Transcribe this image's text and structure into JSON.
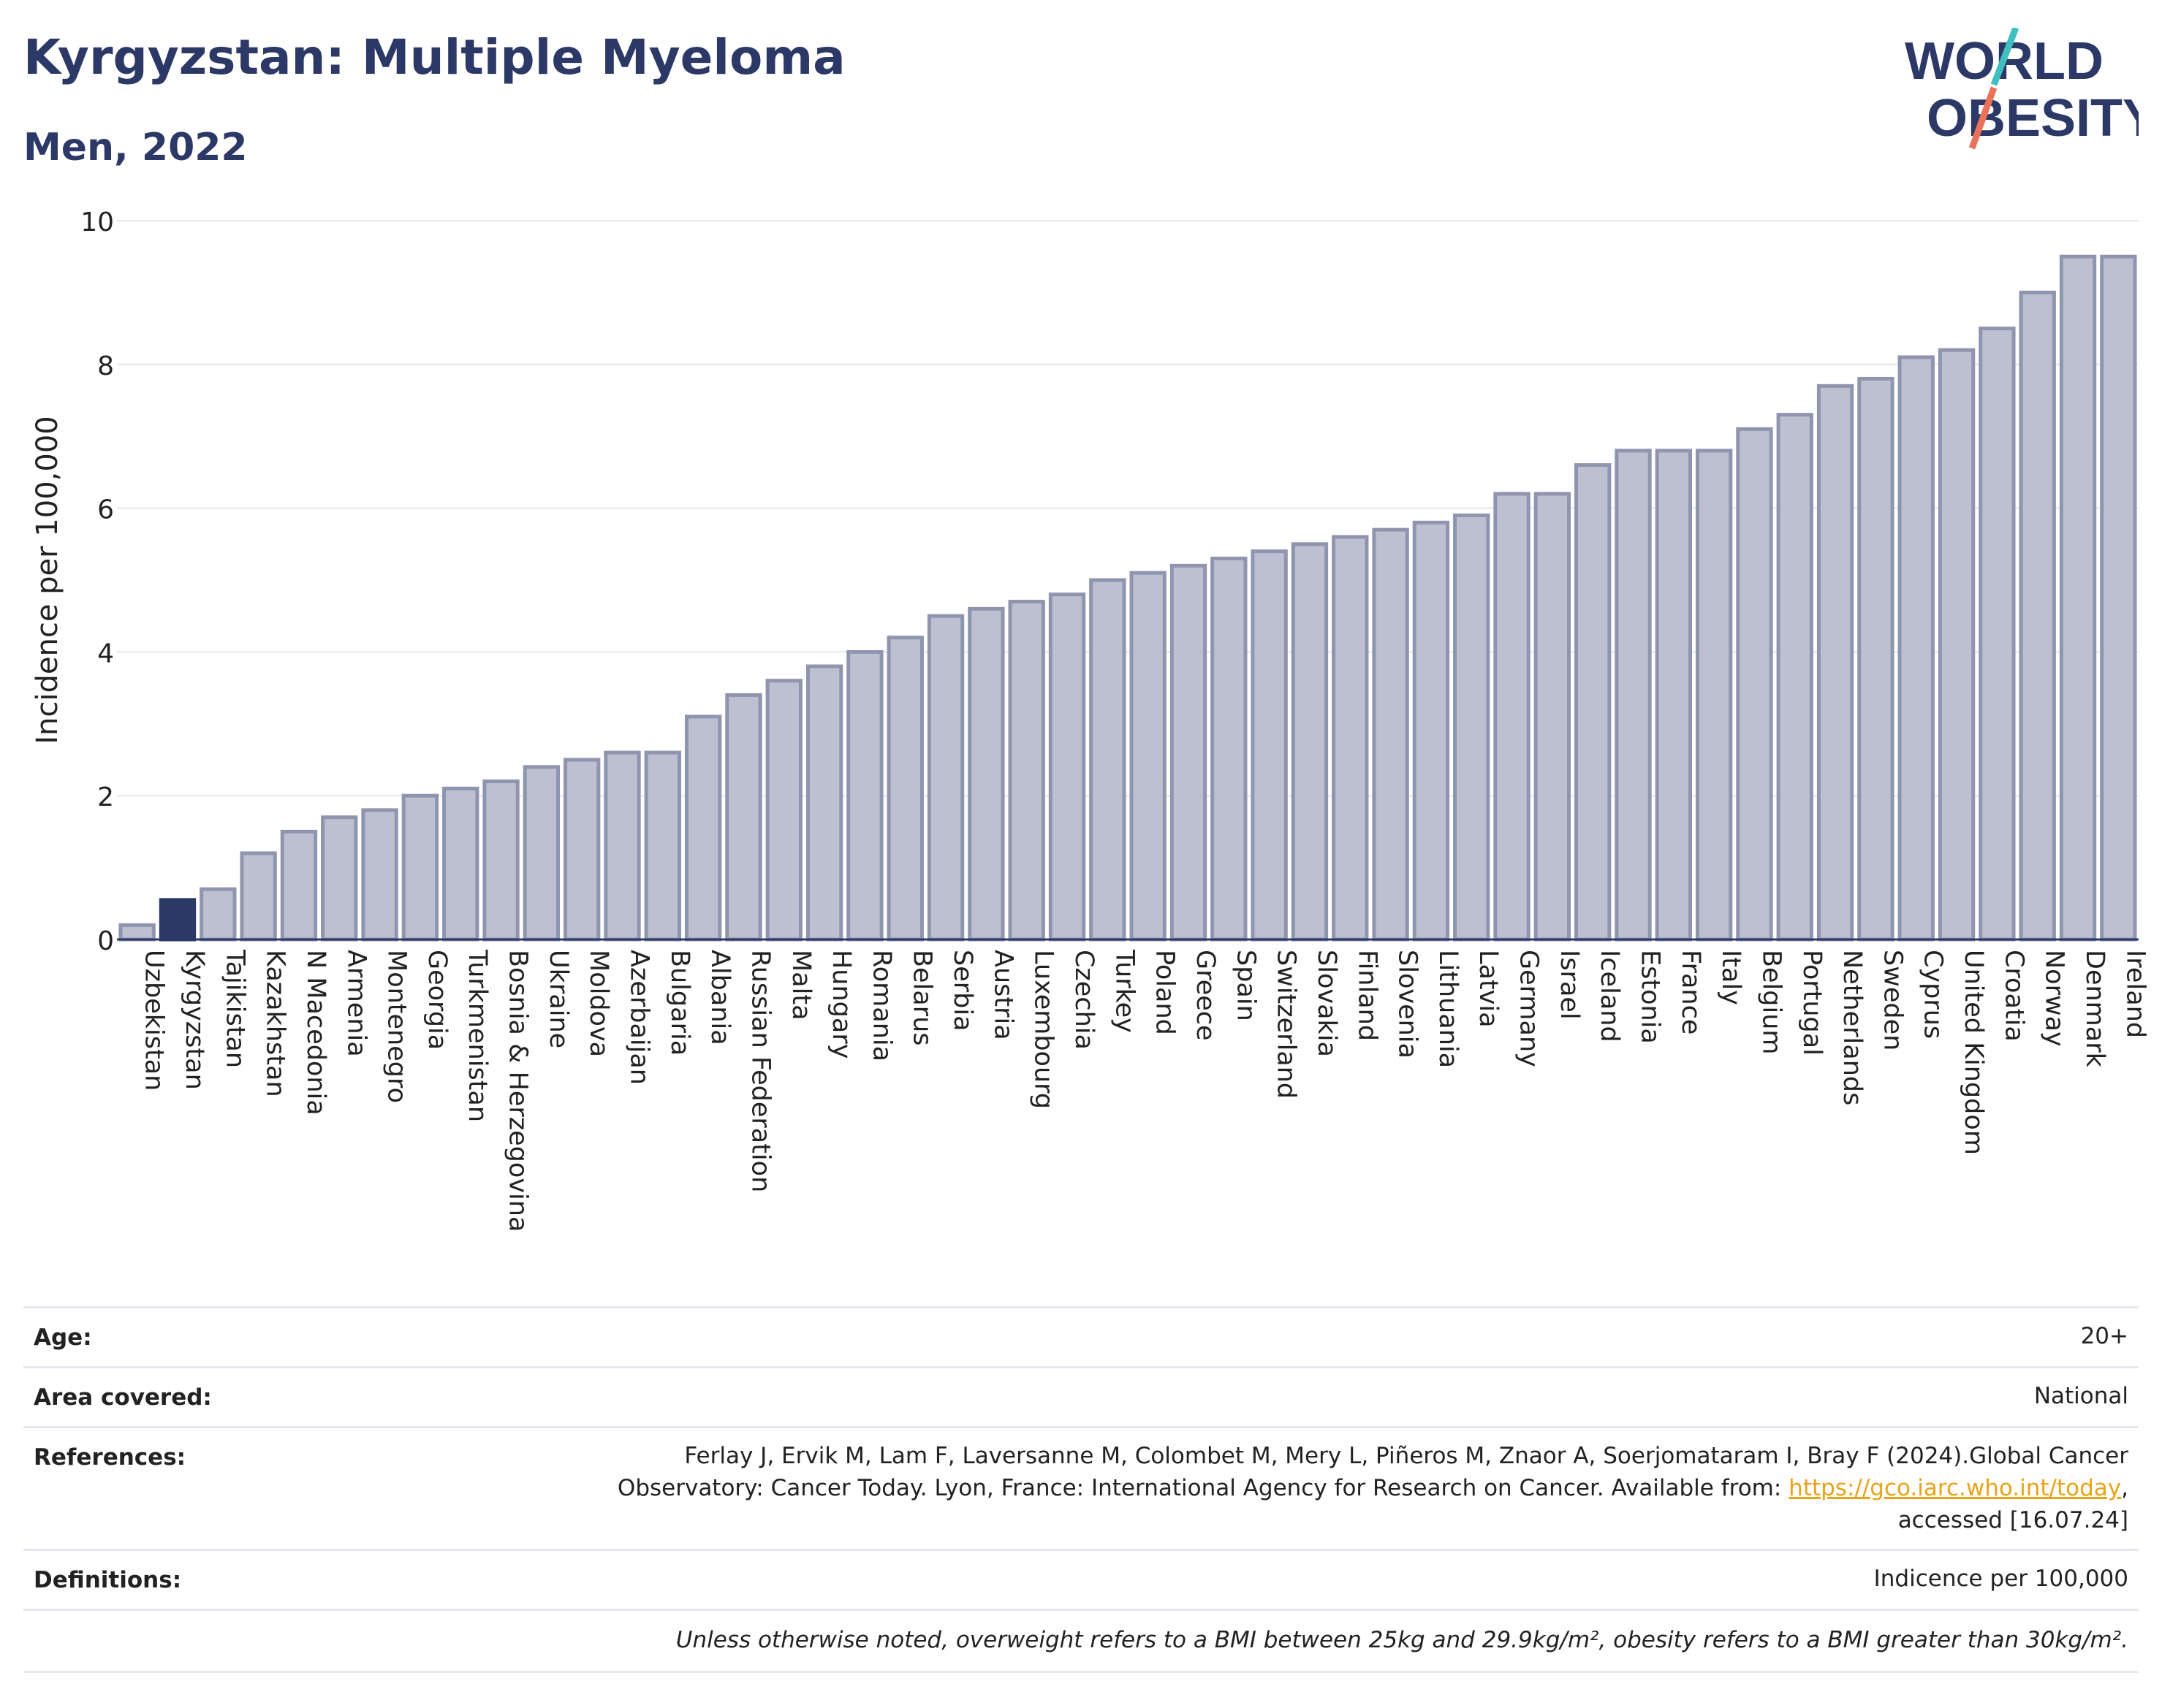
{
  "header": {
    "title": "Kyrgyzstan: Multiple Myeloma",
    "subtitle": "Men, 2022",
    "logo_line1": "WORLD",
    "logo_line2": "OBESITY"
  },
  "colors": {
    "title": "#2c3866",
    "bar": "#bcc0d0",
    "bar_stroke": "#8f95ae",
    "highlight": "#2c3866",
    "logo_teal": "#3fbfbf",
    "logo_coral": "#e8735a"
  },
  "chart_data": {
    "type": "bar",
    "ylabel": "Incidence per 100,000",
    "ylim": [
      0,
      10
    ],
    "yticks": [
      0,
      2,
      4,
      6,
      8,
      10
    ],
    "grid": true,
    "highlight": "Kyrgyzstan",
    "categories": [
      "Uzbekistan",
      "Kyrgyzstan",
      "Tajikistan",
      "Kazakhstan",
      "N Macedonia",
      "Armenia",
      "Montenegro",
      "Georgia",
      "Turkmenistan",
      "Bosnia & Herzegovina",
      "Ukraine",
      "Moldova",
      "Azerbaijan",
      "Bulgaria",
      "Albania",
      "Russian Federation",
      "Malta",
      "Hungary",
      "Romania",
      "Belarus",
      "Serbia",
      "Austria",
      "Luxembourg",
      "Czechia",
      "Turkey",
      "Poland",
      "Greece",
      "Spain",
      "Switzerland",
      "Slovakia",
      "Finland",
      "Slovenia",
      "Lithuania",
      "Latvia",
      "Germany",
      "Israel",
      "Iceland",
      "Estonia",
      "France",
      "Italy",
      "Belgium",
      "Portugal",
      "Netherlands",
      "Sweden",
      "Cyprus",
      "United Kingdom",
      "Croatia",
      "Norway",
      "Denmark",
      "Ireland"
    ],
    "values": [
      0.2,
      0.55,
      0.7,
      1.2,
      1.5,
      1.7,
      1.8,
      2.0,
      2.1,
      2.2,
      2.4,
      2.5,
      2.6,
      2.6,
      3.1,
      3.4,
      3.6,
      3.8,
      4.0,
      4.2,
      4.5,
      4.6,
      4.7,
      4.8,
      5.0,
      5.1,
      5.2,
      5.3,
      5.4,
      5.5,
      5.6,
      5.7,
      5.8,
      5.9,
      6.2,
      6.2,
      6.6,
      6.8,
      6.8,
      6.8,
      7.1,
      7.3,
      7.7,
      7.8,
      8.1,
      8.2,
      8.5,
      9.0,
      9.5,
      9.5
    ]
  },
  "info": {
    "age_label": "Age:",
    "age_value": "20+",
    "area_label": "Area covered:",
    "area_value": "National",
    "references_label": "References:",
    "references_line1": "Ferlay J, Ervik M, Lam F, Laversanne M, Colombet M, Mery L, Piñeros M, Znaor A, Soerjomataram I, Bray F (2024).Global Cancer",
    "references_line2": "Observatory: Cancer Today. Lyon, France: International Agency for Research on Cancer. Available from:",
    "references_link": "https://gco.iarc.who.int/today",
    "references_line3": "accessed [16.07.24]",
    "definitions_label": "Definitions:",
    "definitions_value": "Indicence per 100,000",
    "note": "Unless otherwise noted, overweight refers to a BMI between 25kg and 29.9kg/m², obesity refers to a BMI greater than 30kg/m²."
  }
}
